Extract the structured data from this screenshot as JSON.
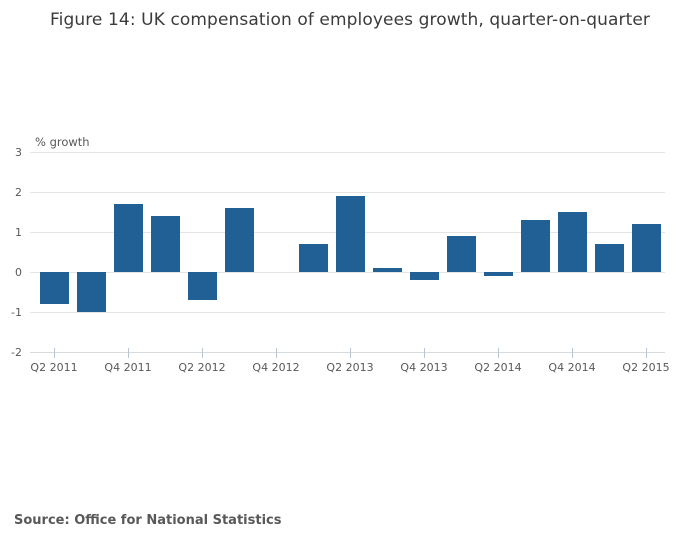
{
  "header": {
    "title": "Figure 14: UK compensation of employees growth, quarter-on-quarter"
  },
  "footer": {
    "source_label": "Source: Office for National Statistics"
  },
  "colors": {
    "bar_blue": "#206095",
    "gridline": "#e4e4e4",
    "text_gray": "#58595b"
  },
  "chart_data": {
    "type": "bar",
    "title": "Figure 14: UK compensation of employees growth, quarter-on-quarter",
    "xlabel": "",
    "ylabel": "% growth",
    "categories": [
      "Q2 2011",
      "Q3 2011",
      "Q4 2011",
      "Q1 2012",
      "Q2 2012",
      "Q3 2012",
      "Q4 2012",
      "Q1 2013",
      "Q2 2013",
      "Q3 2013",
      "Q4 2013",
      "Q1 2014",
      "Q2 2014",
      "Q3 2014",
      "Q4 2014",
      "Q1 2015",
      "Q2 2015"
    ],
    "values": [
      -0.8,
      -1.0,
      1.7,
      1.4,
      -0.7,
      1.6,
      0.0,
      0.7,
      1.9,
      0.1,
      -0.2,
      0.9,
      -0.1,
      1.3,
      1.5,
      0.7,
      1.2
    ],
    "x_tick_labels": [
      "Q2 2011",
      "Q4 2011",
      "Q2 2012",
      "Q4 2012",
      "Q2 2013",
      "Q4 2013",
      "Q2 2014",
      "Q4 2014",
      "Q2 2015"
    ],
    "y_ticks": [
      3,
      2,
      1,
      0,
      -1,
      -2
    ],
    "ylim": [
      -2,
      3
    ],
    "grid": true,
    "legend_position": "none",
    "bar_color": "#206095",
    "source": "Source: Office for National Statistics"
  }
}
